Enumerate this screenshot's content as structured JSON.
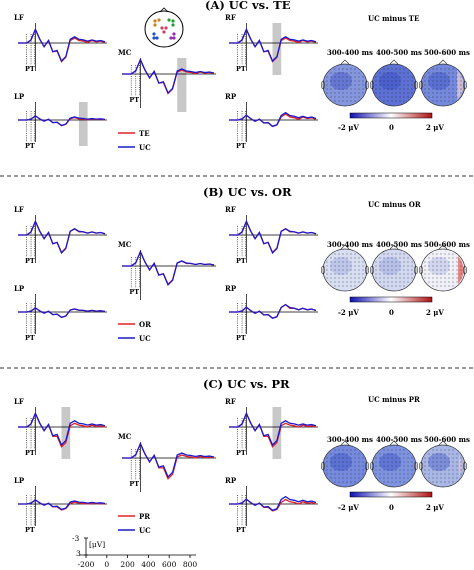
{
  "panels": [
    {
      "title": "(A) UC vs. TE",
      "comparison_label": "TE",
      "topo_title": "UC minus TE",
      "legend": [
        {
          "name": "TE",
          "color": "#e0202a"
        },
        {
          "name": "UC",
          "color": "#1a1acc"
        }
      ],
      "shaded_windows": {
        "RF": [
          300,
          400
        ],
        "MC": [
          400,
          500
        ],
        "LP": [
          500,
          600
        ]
      }
    },
    {
      "title": "(B) UC vs. OR",
      "comparison_label": "OR",
      "topo_title": "UC minus OR",
      "legend": [
        {
          "name": "OR",
          "color": "#e0202a"
        },
        {
          "name": "UC",
          "color": "#1a1acc"
        }
      ],
      "shaded_windows": {}
    },
    {
      "title": "(C) UC vs. PR",
      "comparison_label": "PR",
      "topo_title": "UC minus PR",
      "legend": [
        {
          "name": "PR",
          "color": "#e0202a"
        },
        {
          "name": "UC",
          "color": "#1a1acc"
        }
      ],
      "shaded_windows": {
        "LF": [
          300,
          400
        ],
        "RF": [
          300,
          400
        ]
      }
    }
  ],
  "regions": [
    "LF",
    "MC",
    "RF",
    "LP",
    "RP"
  ],
  "pt_label": "PT",
  "topo_windows": [
    "300-400 ms",
    "400-500 ms",
    "500-600 ms"
  ],
  "colorbar": {
    "min_label": "-2 μV",
    "mid_label": "0",
    "max_label": "2 μV",
    "low_color": "#1010b0",
    "mid_color": "#ffffff",
    "high_color": "#b01010"
  },
  "scale_bar": {
    "y_top": "-3",
    "y_unit": "[μV]",
    "y_bottom": "3",
    "x_ticks": [
      "-200",
      "0",
      "200",
      "400",
      "600",
      "800"
    ]
  },
  "chart_data": {
    "type": "line",
    "x_unit": "ms",
    "y_unit": "μV",
    "x": [
      -200,
      -100,
      -50,
      0,
      50,
      100,
      150,
      200,
      250,
      300,
      350,
      400,
      450,
      500,
      550,
      600,
      650,
      700,
      750,
      800
    ],
    "ylim": [
      -3,
      3
    ],
    "y_inverted": true,
    "series": [
      {
        "name": "UC",
        "values": [
          0,
          0,
          -0.5,
          -2.2,
          -0.6,
          0.6,
          -0.4,
          1.4,
          1.2,
          2.9,
          2.2,
          -0.6,
          -1.0,
          -0.6,
          -0.5,
          -0.3,
          -0.5,
          -0.3,
          -0.4,
          -0.2
        ]
      },
      {
        "name": "TE",
        "values": [
          0,
          0,
          -0.5,
          -2.2,
          -0.6,
          0.6,
          -0.4,
          1.4,
          1.3,
          3.0,
          2.3,
          -0.4,
          -0.8,
          -0.4,
          -0.3,
          -0.1,
          -0.4,
          -0.2,
          -0.3,
          -0.1
        ]
      },
      {
        "name": "OR",
        "values": [
          0,
          0,
          -0.5,
          -2.2,
          -0.6,
          0.6,
          -0.4,
          1.4,
          1.2,
          2.8,
          2.1,
          -0.6,
          -1.0,
          -0.5,
          -0.5,
          -0.3,
          -0.5,
          -0.3,
          -0.4,
          -0.2
        ]
      },
      {
        "name": "PR",
        "values": [
          0,
          0,
          -0.5,
          -2.2,
          -0.6,
          0.6,
          -0.4,
          1.5,
          1.5,
          3.2,
          2.5,
          -0.2,
          -0.6,
          -0.3,
          -0.2,
          0.0,
          -0.3,
          -0.1,
          -0.2,
          0.0
        ]
      }
    ]
  }
}
